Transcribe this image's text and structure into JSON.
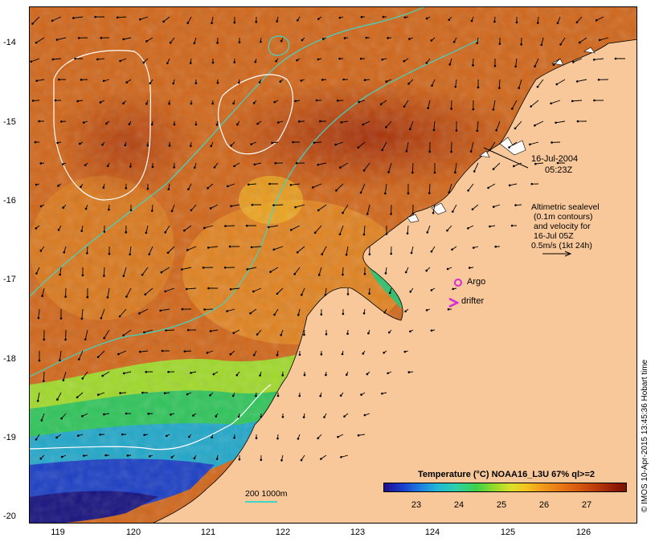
{
  "axes": {
    "y_ticks": [
      "-14",
      "-15",
      "-16",
      "-17",
      "-18",
      "-19",
      "-20"
    ],
    "x_ticks": [
      "119",
      "120",
      "121",
      "122",
      "123",
      "124",
      "125",
      "126"
    ]
  },
  "annotations": {
    "date_line1": "16-Jul-2004",
    "date_line2": "05:23Z",
    "altimetry_line1": "Altimetric sealevel",
    "altimetry_line2": "(0.1m contours)",
    "altimetry_line3": "and velocity for",
    "altimetry_line4": "16-Jul 05Z",
    "altimetry_line5": "0.5m/s (1kt 24h)",
    "argo_label": "Argo",
    "drifter_label": "drifter",
    "scale_label": "200  1000m"
  },
  "legend": {
    "title": "Temperature (°C) NOAA16_L3U 67% ql>=2",
    "ticks": [
      "23",
      "24",
      "25",
      "26",
      "27"
    ]
  },
  "credit": "© IMOS 10-Apr-2015 13:45:36 Hobart time",
  "colors": {
    "land": "#f8c89a",
    "warm_sst": "#c9580f",
    "hot_sst": "#a8300a",
    "cool_sst": "#2bc06a",
    "cold_sst": "#1a30c8",
    "bathymetry": "#3fd6c8",
    "argo": "#d62ad8",
    "drifter": "#d62ad8"
  }
}
